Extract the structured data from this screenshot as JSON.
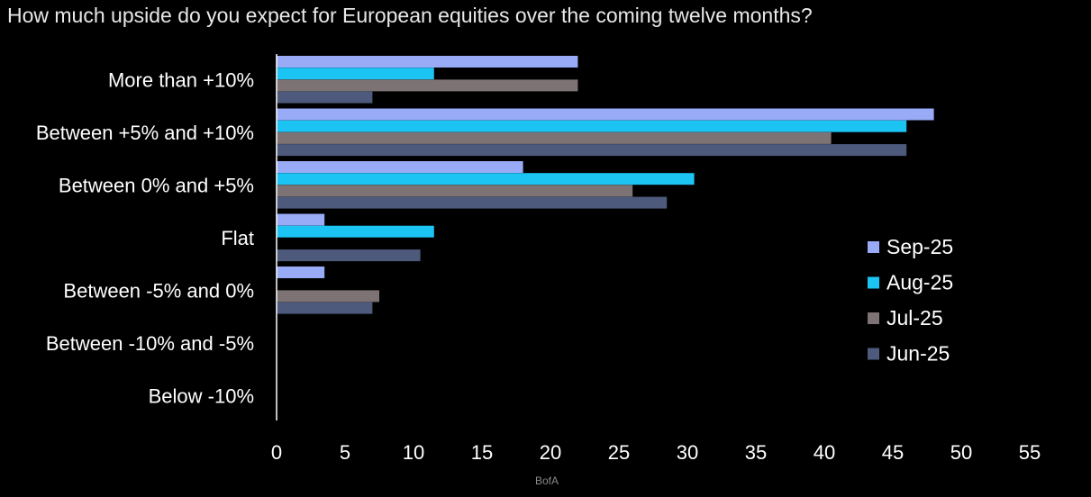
{
  "chart_data": {
    "type": "bar",
    "orientation": "horizontal",
    "title": "How much upside do you expect for European equities over the coming twelve months?",
    "categories": [
      "More than +10%",
      "Between +5% and +10%",
      "Between 0% and +5%",
      "Flat",
      "Between -5% and 0%",
      "Between -10% and -5%",
      "Below -10%"
    ],
    "series": [
      {
        "name": "Sep-25",
        "color": "#99aaf6",
        "values": [
          22,
          48,
          18,
          3.5,
          3.5,
          0,
          0
        ]
      },
      {
        "name": "Aug-25",
        "color": "#1cc4f4",
        "values": [
          11.5,
          46,
          30.5,
          11.5,
          0,
          0,
          0
        ]
      },
      {
        "name": "Jul-25",
        "color": "#7d7374",
        "values": [
          22,
          40.5,
          26,
          0,
          7.5,
          0,
          0
        ]
      },
      {
        "name": "Jun-25",
        "color": "#4d5a7c",
        "values": [
          7,
          46,
          28.5,
          10.5,
          7,
          0,
          0
        ]
      }
    ],
    "xlim": [
      0,
      55
    ],
    "xticks": [
      0,
      5,
      10,
      15,
      20,
      25,
      30,
      35,
      40,
      45,
      50,
      55
    ],
    "grid": false,
    "legend_position": "right"
  },
  "source": "BofA"
}
